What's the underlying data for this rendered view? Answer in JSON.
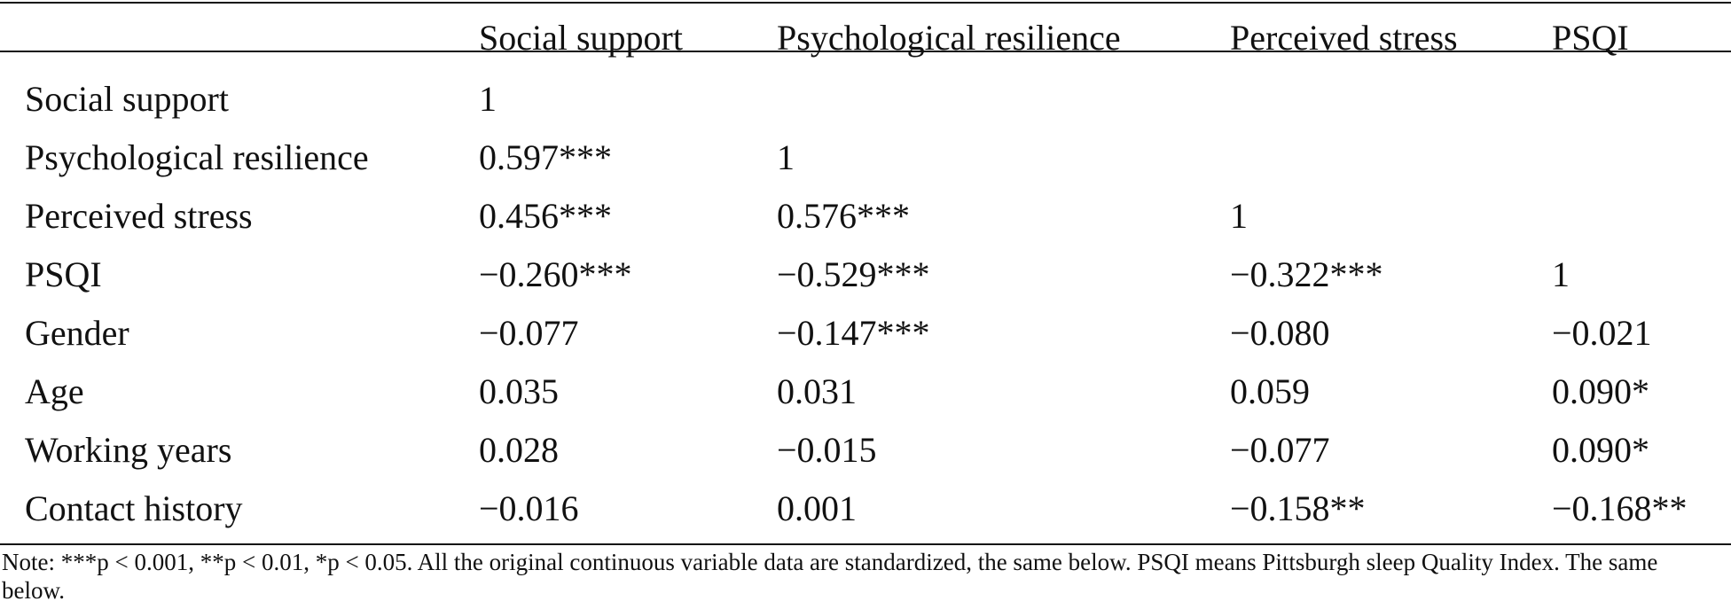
{
  "table": {
    "columns": [
      "",
      "Social support",
      "Psychological resilience",
      "Perceived stress",
      "PSQI"
    ],
    "rows": [
      [
        "Social support",
        "1",
        "",
        "",
        ""
      ],
      [
        "Psychological resilience",
        "0.597***",
        "1",
        "",
        ""
      ],
      [
        "Perceived stress",
        "0.456***",
        "0.576***",
        "1",
        ""
      ],
      [
        "PSQI",
        "−0.260***",
        "−0.529***",
        "−0.322***",
        "1"
      ],
      [
        "Gender",
        "−0.077",
        "−0.147***",
        "−0.080",
        "−0.021"
      ],
      [
        "Age",
        "0.035",
        "0.031",
        "0.059",
        "0.090*"
      ],
      [
        "Working years",
        "0.028",
        "−0.015",
        "−0.077",
        "0.090*"
      ],
      [
        "Contact history",
        "−0.016",
        "0.001",
        "−0.158**",
        "−0.168**"
      ]
    ]
  },
  "note": "Note: ***p < 0.001, **p < 0.01, *p < 0.05. All the original continuous variable data are standardized, the same below. PSQI means Pittsburgh sleep Quality Index. The same below."
}
